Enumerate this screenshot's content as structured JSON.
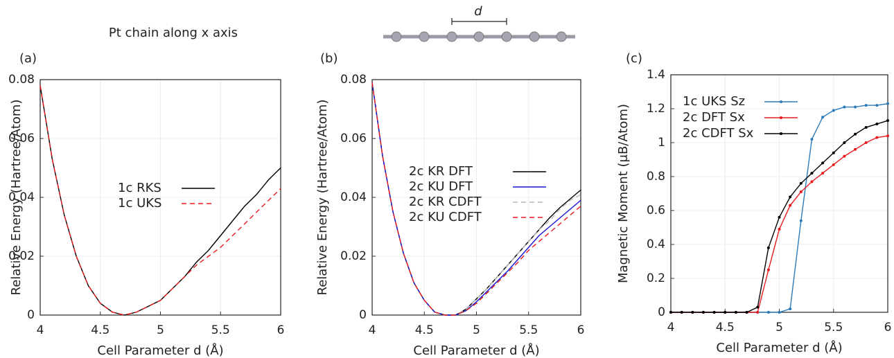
{
  "figure": {
    "title": "Pt chain along x axis",
    "diagram_label": "d"
  },
  "chart_data": [
    {
      "type": "line",
      "panel_label": "(a)",
      "xlabel": "Cell Parameter d (Å)",
      "ylabel": "Relative Energy (Hartree/Atom)",
      "xlim": [
        4,
        6
      ],
      "ylim": [
        0,
        0.08
      ],
      "xticks": [
        4,
        4.5,
        5,
        5.5,
        6
      ],
      "yticks": [
        0,
        0.02,
        0.04,
        0.06,
        0.08
      ],
      "grid": true,
      "x": [
        4,
        4.1,
        4.2,
        4.3,
        4.4,
        4.5,
        4.6,
        4.7,
        4.8,
        4.9,
        5,
        5.1,
        5.2,
        5.3,
        5.4,
        5.5,
        5.6,
        5.7,
        5.8,
        5.9,
        6
      ],
      "series": [
        {
          "name": "1c RKS",
          "color": "#000000",
          "style": "solid",
          "values": [
            0.078,
            0.053,
            0.034,
            0.02,
            0.01,
            0.004,
            0.001,
            0,
            0.001,
            0.003,
            0.005,
            0.009,
            0.013,
            0.018,
            0.022,
            0.027,
            0.032,
            0.037,
            0.041,
            0.046,
            0.05
          ]
        },
        {
          "name": "1c UKS",
          "color": "#e8191c",
          "style": "dashed",
          "values": [
            0.078,
            0.053,
            0.034,
            0.02,
            0.01,
            0.004,
            0.001,
            0,
            0.001,
            0.003,
            0.005,
            0.009,
            0.013,
            0.017,
            0.02,
            0.023,
            0.027,
            0.031,
            0.035,
            0.039,
            0.043
          ]
        }
      ]
    },
    {
      "type": "line",
      "panel_label": "(b)",
      "xlabel": "Cell Parameter d (Å)",
      "ylabel": "Relative Energy (Hartree/Atom)",
      "xlim": [
        4,
        6
      ],
      "ylim": [
        0,
        0.08
      ],
      "xticks": [
        4,
        4.5,
        5,
        5.5,
        6
      ],
      "yticks": [
        0,
        0.02,
        0.04,
        0.06,
        0.08
      ],
      "grid": true,
      "x": [
        4,
        4.1,
        4.2,
        4.3,
        4.4,
        4.5,
        4.6,
        4.7,
        4.8,
        4.9,
        5,
        5.1,
        5.2,
        5.3,
        5.4,
        5.5,
        5.6,
        5.7,
        5.8,
        5.9,
        6
      ],
      "series": [
        {
          "name": "2c KR DFT",
          "color": "#000000",
          "style": "solid",
          "values": [
            0.079,
            0.054,
            0.035,
            0.021,
            0.011,
            0.005,
            0.001,
            0,
            0,
            0.002,
            0.0055,
            0.009,
            0.013,
            0.017,
            0.021,
            0.025,
            0.029,
            0.033,
            0.0365,
            0.0395,
            0.0425
          ]
        },
        {
          "name": "2c KU DFT",
          "color": "#1414d2",
          "style": "solid",
          "values": [
            0.079,
            0.054,
            0.035,
            0.021,
            0.011,
            0.005,
            0.001,
            0,
            0,
            0.0015,
            0.0045,
            0.008,
            0.0115,
            0.015,
            0.019,
            0.023,
            0.027,
            0.03,
            0.033,
            0.036,
            0.039
          ]
        },
        {
          "name": "2c KR CDFT",
          "color": "#b8b8b8",
          "style": "dashed",
          "values": [
            0.079,
            0.054,
            0.035,
            0.021,
            0.011,
            0.005,
            0.001,
            0,
            0,
            0.002,
            0.0055,
            0.009,
            0.013,
            0.017,
            0.021,
            0.025,
            0.029,
            0.032,
            0.036,
            0.039,
            0.041
          ]
        },
        {
          "name": "2c KU CDFT",
          "color": "#e8191c",
          "style": "dashed",
          "values": [
            0.079,
            0.054,
            0.035,
            0.021,
            0.011,
            0.005,
            0.001,
            0,
            0,
            0.0015,
            0.004,
            0.0075,
            0.011,
            0.0145,
            0.018,
            0.022,
            0.025,
            0.028,
            0.031,
            0.034,
            0.037
          ]
        }
      ]
    },
    {
      "type": "line",
      "panel_label": "(c)",
      "xlabel": "Cell Parameter d (Å)",
      "ylabel": "Magnetic Moment (μB/Atom)",
      "xlim": [
        4,
        6
      ],
      "ylim": [
        0,
        1.4
      ],
      "xticks": [
        4,
        4.5,
        5,
        5.5,
        6
      ],
      "yticks": [
        0,
        0.2,
        0.4,
        0.6,
        0.8,
        1,
        1.2,
        1.4
      ],
      "grid": true,
      "markers": true,
      "x": [
        4,
        4.1,
        4.2,
        4.3,
        4.4,
        4.5,
        4.6,
        4.7,
        4.8,
        4.9,
        5,
        5.1,
        5.2,
        5.3,
        5.4,
        5.5,
        5.6,
        5.7,
        5.8,
        5.9,
        6
      ],
      "series": [
        {
          "name": "1c UKS Sz",
          "color": "#2a7ab9",
          "style": "solid",
          "values": [
            0,
            0,
            0,
            0,
            0,
            0,
            0,
            0,
            0,
            0,
            0,
            0.02,
            0.54,
            1.02,
            1.15,
            1.19,
            1.21,
            1.21,
            1.22,
            1.22,
            1.23
          ]
        },
        {
          "name": "2c DFT Sx",
          "color": "#e8191c",
          "style": "solid",
          "values": [
            0,
            0,
            0,
            0,
            0,
            0,
            0,
            0,
            0,
            0.25,
            0.49,
            0.63,
            0.71,
            0.77,
            0.82,
            0.87,
            0.92,
            0.96,
            1.0,
            1.03,
            1.04
          ]
        },
        {
          "name": "2c CDFT Sx",
          "color": "#000000",
          "style": "solid",
          "values": [
            0,
            0,
            0,
            0,
            0,
            0,
            0,
            0,
            0.03,
            0.38,
            0.56,
            0.68,
            0.76,
            0.82,
            0.88,
            0.94,
            1.0,
            1.05,
            1.09,
            1.11,
            1.13
          ]
        }
      ]
    }
  ]
}
